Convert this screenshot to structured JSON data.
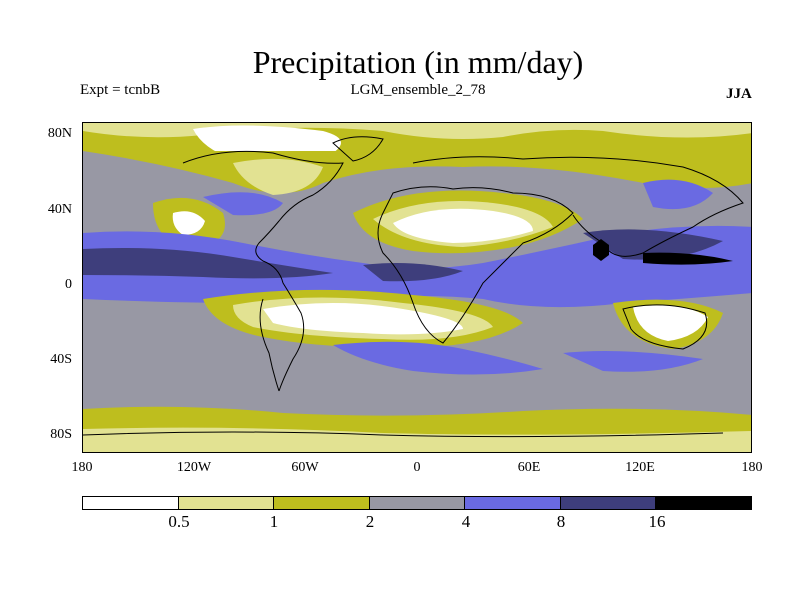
{
  "header": {
    "title": "Precipitation (in mm/day)",
    "experiment": "Expt = tcnbB",
    "ensemble": "LGM_ensemble_2_78",
    "season": "JJA"
  },
  "axes": {
    "lat_labels": [
      "80N",
      "40N",
      "0",
      "40S",
      "80S"
    ],
    "lon_labels": [
      "180",
      "120W",
      "60W",
      "0",
      "60E",
      "120E",
      "180"
    ]
  },
  "colorbar": {
    "colors": [
      "#ffffff",
      "#e2e292",
      "#bebe1e",
      "#9898a4",
      "#6a6ae2",
      "#3e3e7c",
      "#000000"
    ],
    "labels": [
      "0.5",
      "1",
      "2",
      "4",
      "8",
      "16"
    ]
  }
}
